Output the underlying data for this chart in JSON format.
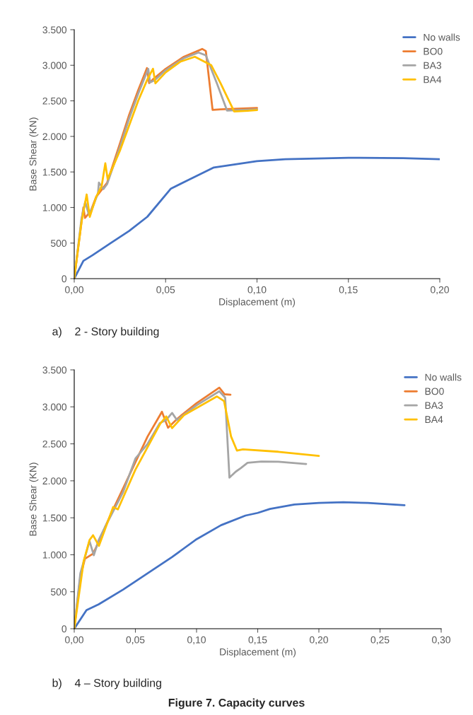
{
  "chart_data": [
    {
      "type": "line",
      "xlabel": "Displacement (m)",
      "ylabel": "Base Shear (KN)",
      "legend": "top right",
      "grid": false,
      "marker": "none",
      "line_style": "solid",
      "xlim": [
        0,
        0.2
      ],
      "ylim": [
        0,
        3500
      ],
      "xticks": [
        {
          "value": 0,
          "label": "0,00"
        },
        {
          "value": 0.05,
          "label": "0,05"
        },
        {
          "value": 0.1,
          "label": "0,10"
        },
        {
          "value": 0.15,
          "label": "0,15"
        },
        {
          "value": 0.2,
          "label": "0,20"
        }
      ],
      "yticks": [
        {
          "value": 0,
          "label": "0"
        },
        {
          "value": 500,
          "label": "500"
        },
        {
          "value": 1000,
          "label": "1.000"
        },
        {
          "value": 1500,
          "label": "1.500"
        },
        {
          "value": 2000,
          "label": "2.000"
        },
        {
          "value": 2500,
          "label": "2.500"
        },
        {
          "value": 3000,
          "label": "3.000"
        },
        {
          "value": 3500,
          "label": "3.500"
        }
      ],
      "annotations": [
        "a)    2 - Story building"
      ],
      "series": [
        {
          "name": "No walls",
          "color": "#4472c4",
          "x": [
            0,
            0.005,
            0.01,
            0.02,
            0.03,
            0.04,
            0.0529,
            0.065,
            0.0764,
            0.0999,
            0.1155,
            0.15,
            0.18,
            0.2
          ],
          "values": [
            0,
            250,
            330,
            500,
            670,
            870,
            1266,
            1420,
            1563,
            1652,
            1679,
            1700,
            1695,
            1680
          ]
        },
        {
          "name": "BO0",
          "color": "#ed7d31",
          "x": [
            0,
            0.004,
            0.005,
            0.0059,
            0.009,
            0.012,
            0.015,
            0.018,
            0.025,
            0.03,
            0.035,
            0.0398,
            0.041,
            0.043,
            0.05,
            0.06,
            0.07,
            0.072,
            0.0757,
            0.08,
            0.09,
            0.1
          ],
          "values": [
            0,
            800,
            1000,
            853,
            950,
            1150,
            1250,
            1350,
            1900,
            2300,
            2650,
            2961,
            2750,
            2800,
            2950,
            3120,
            3230,
            3200,
            2373,
            2380,
            2390,
            2400
          ]
        },
        {
          "name": "BA3",
          "color": "#a5a5a5",
          "x": [
            0,
            0.004,
            0.006,
            0.008,
            0.01,
            0.013,
            0.0135,
            0.016,
            0.018,
            0.025,
            0.03,
            0.035,
            0.0405,
            0.0415,
            0.044,
            0.05,
            0.06,
            0.068,
            0.072,
            0.078,
            0.0836,
            0.09,
            0.1
          ],
          "values": [
            0,
            850,
            1080,
            900,
            1000,
            1200,
            1350,
            1260,
            1330,
            1850,
            2250,
            2600,
            2950,
            2760,
            2790,
            2930,
            3100,
            3180,
            3140,
            2750,
            2363,
            2370,
            2380
          ]
        },
        {
          "name": "BA4",
          "color": "#ffc000",
          "x": [
            0,
            0.004,
            0.0068,
            0.0085,
            0.012,
            0.015,
            0.017,
            0.0183,
            0.025,
            0.03,
            0.035,
            0.04,
            0.0431,
            0.0444,
            0.05,
            0.058,
            0.066,
            0.075,
            0.08,
            0.0875,
            0.095,
            0.1
          ],
          "values": [
            0,
            800,
            1183,
            869,
            1150,
            1300,
            1622,
            1398,
            1800,
            2150,
            2500,
            2800,
            2951,
            2746,
            2900,
            3050,
            3120,
            3000,
            2750,
            2350,
            2360,
            2370
          ]
        }
      ]
    },
    {
      "type": "line",
      "xlabel": "Displacement (m)",
      "ylabel": "Base Shear (KN)",
      "legend": "top right",
      "grid": false,
      "marker": "none",
      "line_style": "solid",
      "xlim": [
        0,
        0.3
      ],
      "ylim": [
        0,
        3500
      ],
      "xticks": [
        {
          "value": 0,
          "label": "0,00"
        },
        {
          "value": 0.05,
          "label": "0,05"
        },
        {
          "value": 0.1,
          "label": "0,10"
        },
        {
          "value": 0.15,
          "label": "0,15"
        },
        {
          "value": 0.2,
          "label": "0,20"
        },
        {
          "value": 0.25,
          "label": "0,25"
        },
        {
          "value": 0.3,
          "label": "0,30"
        }
      ],
      "yticks": [
        {
          "value": 0,
          "label": "0"
        },
        {
          "value": 500,
          "label": "500"
        },
        {
          "value": 1000,
          "label": "1.000"
        },
        {
          "value": 1500,
          "label": "1.500"
        },
        {
          "value": 2000,
          "label": "2.000"
        },
        {
          "value": 2500,
          "label": "2.500"
        },
        {
          "value": 3000,
          "label": "3.000"
        },
        {
          "value": 3500,
          "label": "3.500"
        }
      ],
      "annotations": [
        "b)    4 – Story building",
        "Figure 7. Capacity curves"
      ],
      "series": [
        {
          "name": "No walls",
          "color": "#4472c4",
          "x": [
            0,
            0.01,
            0.02,
            0.04,
            0.06,
            0.08,
            0.1,
            0.12,
            0.14,
            0.15,
            0.16,
            0.18,
            0.2,
            0.22,
            0.24,
            0.27
          ],
          "values": [
            0,
            250,
            330,
            530,
            750,
            970,
            1210,
            1400,
            1530,
            1566,
            1620,
            1680,
            1700,
            1710,
            1700,
            1670
          ]
        },
        {
          "name": "BO0",
          "color": "#ed7d31",
          "x": [
            0,
            0.005,
            0.0087,
            0.0154,
            0.018,
            0.03,
            0.04,
            0.05,
            0.06,
            0.0717,
            0.0767,
            0.085,
            0.1,
            0.1186,
            0.123,
            0.1277
          ],
          "values": [
            0,
            700,
            945,
            1015,
            1104,
            1550,
            1900,
            2250,
            2600,
            2934,
            2718,
            2850,
            3050,
            3259,
            3170,
            3164
          ]
        },
        {
          "name": "BA3",
          "color": "#a5a5a5",
          "x": [
            0,
            0.005,
            0.0125,
            0.016,
            0.02,
            0.025,
            0.04,
            0.05,
            0.06,
            0.07,
            0.075,
            0.08,
            0.0839,
            0.1,
            0.1186,
            0.1234,
            0.1269,
            0.132,
            0.136,
            0.1417,
            0.153,
            0.1668,
            0.1896
          ],
          "values": [
            0,
            750,
            1184,
            993,
            1200,
            1370,
            1850,
            2300,
            2500,
            2780,
            2820,
            2918,
            2823,
            3020,
            3211,
            3125,
            2043,
            2123,
            2170,
            2244,
            2260,
            2257,
            2228
          ]
        },
        {
          "name": "BA4",
          "color": "#ffc000",
          "x": [
            0,
            0.0077,
            0.0125,
            0.0154,
            0.0202,
            0.0318,
            0.0357,
            0.05,
            0.0704,
            0.0752,
            0.08,
            0.0897,
            0.1167,
            0.1225,
            0.1282,
            0.133,
            0.1379,
            0.1668,
            0.2
          ],
          "values": [
            0,
            913,
            1200,
            1264,
            1120,
            1645,
            1614,
            2150,
            2775,
            2871,
            2712,
            2887,
            3141,
            3078,
            2600,
            2409,
            2425,
            2393,
            2336
          ]
        }
      ]
    }
  ]
}
